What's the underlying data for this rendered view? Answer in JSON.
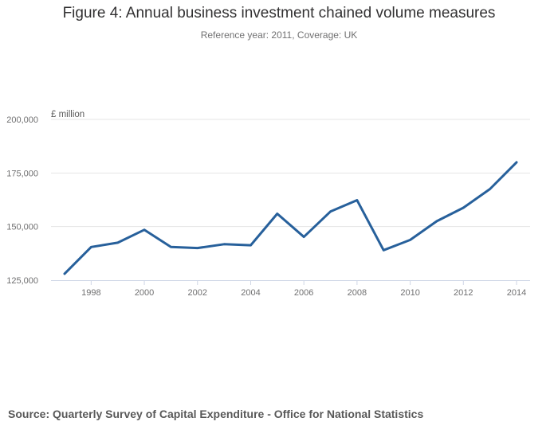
{
  "chart_data": {
    "type": "line",
    "title": "Figure 4: Annual business investment chained volume measures",
    "subtitle": "Reference year: 2011, Coverage: UK",
    "ylabel": "£ million",
    "xlabel": "",
    "ylim": [
      125000,
      200000
    ],
    "xlim": [
      1997,
      2014
    ],
    "y_ticks": [
      125000,
      150000,
      175000,
      200000
    ],
    "y_tick_labels": [
      "125,000",
      "150,000",
      "175,000",
      "200,000"
    ],
    "x_ticks": [
      1998,
      2000,
      2002,
      2004,
      2006,
      2008,
      2010,
      2012,
      2014
    ],
    "x_tick_labels": [
      "1998",
      "2000",
      "2002",
      "2004",
      "2006",
      "2008",
      "2010",
      "2012",
      "2014"
    ],
    "grid": true,
    "series": [
      {
        "name": "Business investment",
        "color": "#27609b",
        "x": [
          1997,
          1998,
          1999,
          2000,
          2001,
          2002,
          2003,
          2004,
          2005,
          2006,
          2007,
          2008,
          2009,
          2010,
          2011,
          2012,
          2013,
          2014
        ],
        "values": [
          128000,
          140500,
          142500,
          148500,
          140500,
          140000,
          141800,
          141300,
          156000,
          145200,
          157000,
          162300,
          139000,
          143800,
          152500,
          158800,
          167500,
          180000
        ]
      }
    ]
  },
  "footer": {
    "source": "Source: Quarterly Survey of Capital Expenditure - Office for National Statistics"
  }
}
